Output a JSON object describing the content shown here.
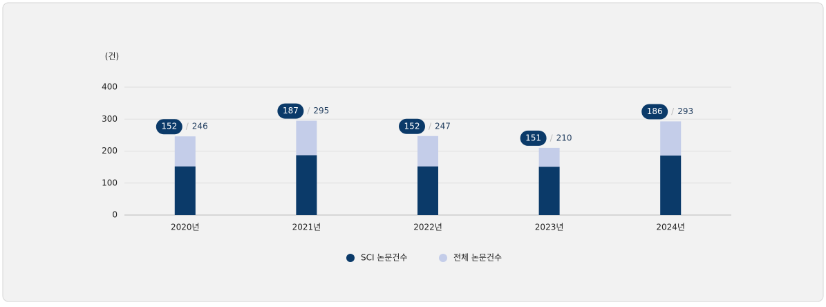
{
  "chart_data": {
    "type": "bar",
    "y_label": "(건)",
    "categories": [
      "2020년",
      "2021년",
      "2022년",
      "2023년",
      "2024년"
    ],
    "series": [
      {
        "name": "SCI 논문건수",
        "color": "#0b3a69",
        "values": [
          152,
          187,
          152,
          151,
          186
        ]
      },
      {
        "name": "전체 논문건수",
        "color": "#c4cde9",
        "values": [
          246,
          295,
          247,
          210,
          293
        ]
      }
    ],
    "label_separator": "/",
    "ylim": [
      0,
      400
    ],
    "yticks": [
      0,
      100,
      200,
      300,
      400
    ],
    "grid": true,
    "legend": "bottom"
  }
}
